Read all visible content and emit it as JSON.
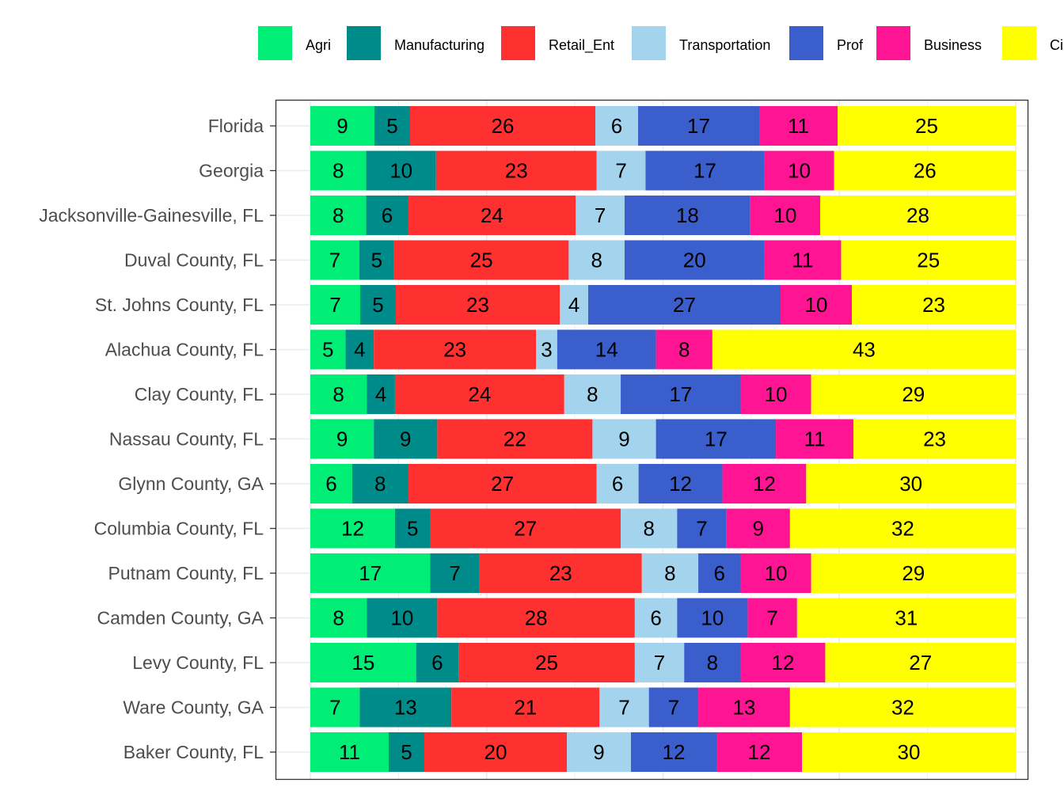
{
  "chart_data": {
    "type": "bar",
    "orientation": "horizontal",
    "stacked": true,
    "categories": [
      "Florida",
      "Georgia",
      "Jacksonville-Gainesville, FL",
      "Duval County, FL",
      "St. Johns County, FL",
      "Alachua County, FL",
      "Clay County, FL",
      "Nassau County, FL",
      "Glynn County, GA",
      "Columbia County, FL",
      "Putnam County, FL",
      "Camden County, GA",
      "Levy County, FL",
      "Ware County, GA",
      "Baker County, FL"
    ],
    "series": [
      {
        "name": "Agri",
        "color": "#00EE76",
        "values": [
          9,
          8,
          8,
          7,
          7,
          5,
          8,
          9,
          6,
          12,
          17,
          8,
          15,
          7,
          11
        ]
      },
      {
        "name": "Manufacturing",
        "color": "#008B8B",
        "values": [
          5,
          10,
          6,
          5,
          5,
          4,
          4,
          9,
          8,
          5,
          7,
          10,
          6,
          13,
          5
        ]
      },
      {
        "name": "Retail_Ent",
        "color": "#FF3030",
        "values": [
          26,
          23,
          24,
          25,
          23,
          23,
          24,
          22,
          27,
          27,
          23,
          28,
          25,
          21,
          20
        ]
      },
      {
        "name": "Transportation",
        "color": "#A4D3EE",
        "values": [
          6,
          7,
          7,
          8,
          4,
          3,
          8,
          9,
          6,
          8,
          8,
          6,
          7,
          7,
          9
        ]
      },
      {
        "name": "Prof",
        "color": "#3A5FCD",
        "values": [
          17,
          17,
          18,
          20,
          27,
          14,
          17,
          17,
          12,
          7,
          6,
          10,
          8,
          7,
          12
        ]
      },
      {
        "name": "Business",
        "color": "#FF1493",
        "values": [
          11,
          10,
          10,
          11,
          10,
          8,
          10,
          11,
          12,
          9,
          10,
          7,
          12,
          13,
          12
        ]
      },
      {
        "name": "Ci",
        "color": "#FFFF00",
        "values": [
          25,
          26,
          28,
          25,
          23,
          43,
          29,
          23,
          30,
          32,
          29,
          31,
          27,
          32,
          30
        ]
      }
    ],
    "xlim": [
      0,
      100
    ],
    "grid": true,
    "legend_position": "top"
  }
}
